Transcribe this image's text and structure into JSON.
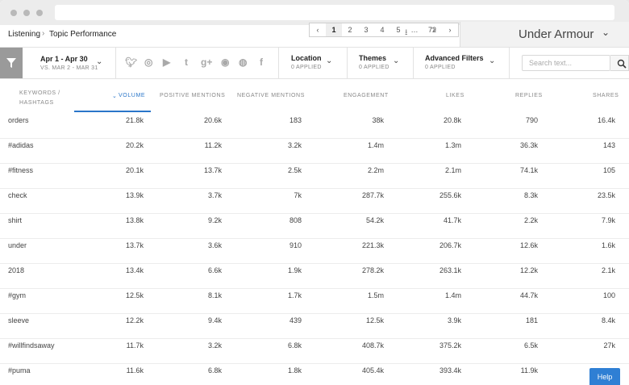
{
  "breadcrumb": {
    "parent": "Listening",
    "current": "Topic Performance"
  },
  "pager": {
    "pages": [
      "1",
      "2",
      "3",
      "4",
      "5",
      "72"
    ],
    "active": "1"
  },
  "brand": {
    "name": "Under Armour"
  },
  "date": {
    "range": "Apr 1 - Apr 30",
    "compare": "VS. MAR 2 - MAR 31"
  },
  "filters": {
    "location": {
      "label": "Location",
      "sub": "0 APPLIED"
    },
    "themes": {
      "label": "Themes",
      "sub": "0 APPLIED"
    },
    "advanced": {
      "label": "Advanced Filters",
      "sub": "0 APPLIED"
    }
  },
  "search": {
    "placeholder": "Search text..."
  },
  "table": {
    "columns": {
      "keyword": "KEYWORDS / HASHTAGS",
      "volume": "VOLUME",
      "positive": "POSITIVE MENTIONS",
      "negative": "NEGATIVE MENTIONS",
      "engagement": "ENGAGEMENT",
      "likes": "LIKES",
      "replies": "REPLIES",
      "shares": "SHARES"
    },
    "rows": [
      {
        "keyword": "orders",
        "volume": "21.8k",
        "positive": "20.6k",
        "negative": "183",
        "engagement": "38k",
        "likes": "20.8k",
        "replies": "790",
        "shares": "16.4k"
      },
      {
        "keyword": "#adidas",
        "volume": "20.2k",
        "positive": "11.2k",
        "negative": "3.2k",
        "engagement": "1.4m",
        "likes": "1.3m",
        "replies": "36.3k",
        "shares": "143"
      },
      {
        "keyword": "#fitness",
        "volume": "20.1k",
        "positive": "13.7k",
        "negative": "2.5k",
        "engagement": "2.2m",
        "likes": "2.1m",
        "replies": "74.1k",
        "shares": "105"
      },
      {
        "keyword": "check",
        "volume": "13.9k",
        "positive": "3.7k",
        "negative": "7k",
        "engagement": "287.7k",
        "likes": "255.6k",
        "replies": "8.3k",
        "shares": "23.5k"
      },
      {
        "keyword": "shirt",
        "volume": "13.8k",
        "positive": "9.2k",
        "negative": "808",
        "engagement": "54.2k",
        "likes": "41.7k",
        "replies": "2.2k",
        "shares": "7.9k"
      },
      {
        "keyword": "under",
        "volume": "13.7k",
        "positive": "3.6k",
        "negative": "910",
        "engagement": "221.3k",
        "likes": "206.7k",
        "replies": "12.6k",
        "shares": "1.6k"
      },
      {
        "keyword": "2018",
        "volume": "13.4k",
        "positive": "6.6k",
        "negative": "1.9k",
        "engagement": "278.2k",
        "likes": "263.1k",
        "replies": "12.2k",
        "shares": "2.1k"
      },
      {
        "keyword": "#gym",
        "volume": "12.5k",
        "positive": "8.1k",
        "negative": "1.7k",
        "engagement": "1.5m",
        "likes": "1.4m",
        "replies": "44.7k",
        "shares": "100"
      },
      {
        "keyword": "sleeve",
        "volume": "12.2k",
        "positive": "9.4k",
        "negative": "439",
        "engagement": "12.5k",
        "likes": "3.9k",
        "replies": "181",
        "shares": "8.4k"
      },
      {
        "keyword": "#willfindsaway",
        "volume": "11.7k",
        "positive": "3.2k",
        "negative": "6.8k",
        "engagement": "408.7k",
        "likes": "375.2k",
        "replies": "6.5k",
        "shares": "27k"
      },
      {
        "keyword": "#puma",
        "volume": "11.6k",
        "positive": "6.8k",
        "negative": "1.8k",
        "engagement": "405.4k",
        "likes": "393.4k",
        "replies": "11.9k",
        "shares": ""
      }
    ]
  },
  "help": {
    "label": "Help"
  },
  "icons": [
    "filter-icon",
    "twitter-icon",
    "instagram-icon",
    "youtube-icon",
    "tumblr-icon",
    "google-plus-icon",
    "reddit-icon",
    "web-icon",
    "facebook-icon",
    "search-icon",
    "chevron-down-icon"
  ]
}
